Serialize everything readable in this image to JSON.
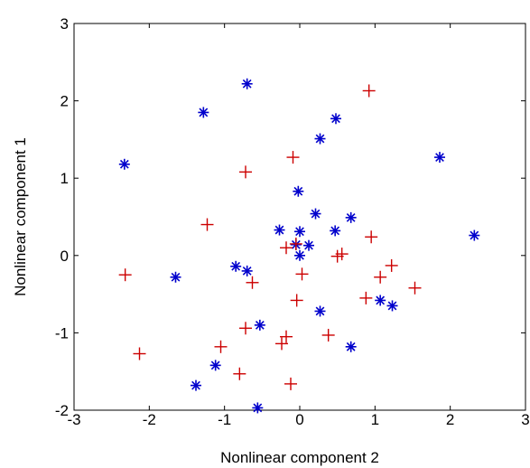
{
  "chart_data": {
    "type": "scatter",
    "title": "",
    "xlabel": "Nonlinear component 2",
    "ylabel": "Nonlinear component 1",
    "xlim": [
      -3,
      3
    ],
    "ylim": [
      -2,
      3
    ],
    "xticks": [
      -3,
      -2,
      -1,
      0,
      1,
      2,
      3
    ],
    "yticks": [
      -2,
      -1,
      0,
      1,
      2,
      3
    ],
    "xtick_labels": [
      "-3",
      "-2",
      "-1",
      "0",
      "1",
      "2",
      "3"
    ],
    "ytick_labels": [
      "-2",
      "-1",
      "0",
      "1",
      "2",
      "3"
    ],
    "grid": false,
    "series": [
      {
        "marker": "asterisk",
        "color": "#0000cc",
        "points": [
          [
            -0.7,
            2.22
          ],
          [
            -1.28,
            1.85
          ],
          [
            0.48,
            1.77
          ],
          [
            0.27,
            1.51
          ],
          [
            -2.33,
            1.18
          ],
          [
            1.86,
            1.27
          ],
          [
            -0.02,
            0.83
          ],
          [
            0.21,
            0.54
          ],
          [
            0.68,
            0.49
          ],
          [
            -0.27,
            0.33
          ],
          [
            0.0,
            0.31
          ],
          [
            0.47,
            0.32
          ],
          [
            -0.05,
            0.14
          ],
          [
            0.12,
            0.13
          ],
          [
            2.32,
            0.26
          ],
          [
            -0.85,
            -0.14
          ],
          [
            -0.7,
            -0.2
          ],
          [
            -1.65,
            -0.28
          ],
          [
            0.0,
            0.0
          ],
          [
            0.27,
            -0.72
          ],
          [
            1.07,
            -0.58
          ],
          [
            1.23,
            -0.65
          ],
          [
            -0.53,
            -0.9
          ],
          [
            0.68,
            -1.18
          ],
          [
            -1.12,
            -1.42
          ],
          [
            -1.38,
            -1.68
          ],
          [
            -0.56,
            -1.97
          ]
        ]
      },
      {
        "marker": "plus",
        "color": "#cc0000",
        "points": [
          [
            0.92,
            2.13
          ],
          [
            -0.09,
            1.27
          ],
          [
            -0.72,
            1.08
          ],
          [
            -1.23,
            0.4
          ],
          [
            0.95,
            0.24
          ],
          [
            -0.18,
            0.1
          ],
          [
            -0.05,
            0.15
          ],
          [
            0.03,
            -0.24
          ],
          [
            0.56,
            0.02
          ],
          [
            0.5,
            -0.01
          ],
          [
            1.07,
            -0.28
          ],
          [
            1.22,
            -0.13
          ],
          [
            -2.32,
            -0.25
          ],
          [
            -0.63,
            -0.35
          ],
          [
            1.53,
            -0.42
          ],
          [
            -0.04,
            -0.58
          ],
          [
            0.88,
            -0.55
          ],
          [
            -0.72,
            -0.94
          ],
          [
            -0.18,
            -1.05
          ],
          [
            -0.24,
            -1.14
          ],
          [
            0.38,
            -1.03
          ],
          [
            -1.05,
            -1.18
          ],
          [
            -2.13,
            -1.27
          ],
          [
            -0.8,
            -1.53
          ],
          [
            -0.12,
            -1.66
          ]
        ]
      }
    ]
  }
}
